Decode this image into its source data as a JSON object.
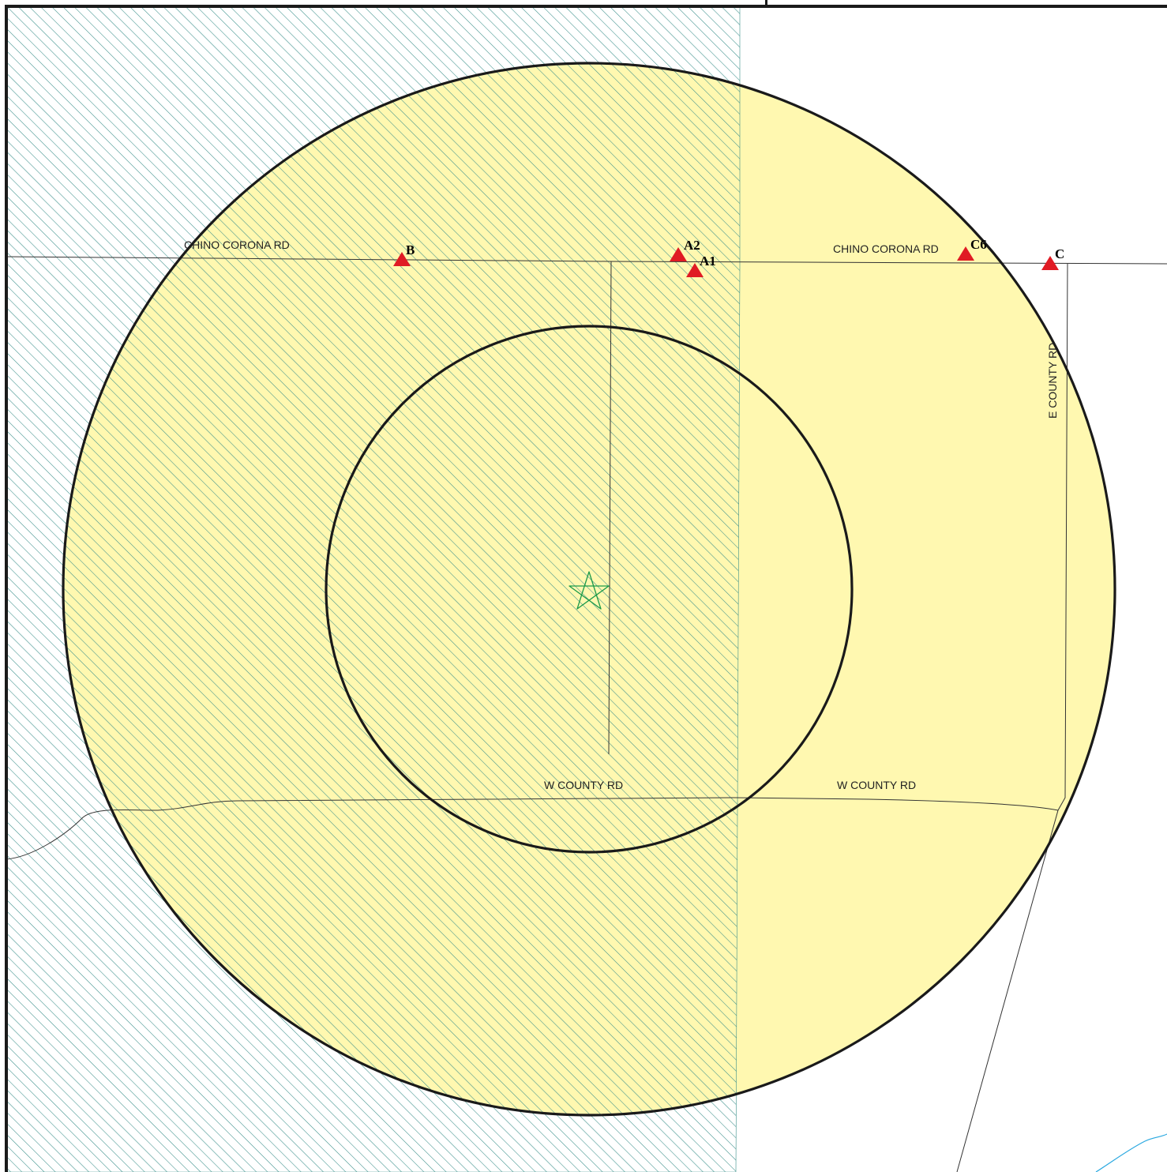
{
  "roads": {
    "chino_corona_west": "CHINO CORONA RD",
    "chino_corona_east": "CHINO CORONA RD",
    "w_county_west": "W COUNTY RD",
    "w_county_east": "W COUNTY RD",
    "e_county": "E COUNTY RD"
  },
  "sites": {
    "b": "B",
    "a2": "A2",
    "a1": "A1",
    "c6": "C6",
    "c": "C"
  },
  "icons": {
    "center": "star-icon",
    "site_marker": "triangle-icon"
  },
  "colors": {
    "buffer_fill": "#fff8b0",
    "hatch": "#3a8f8a",
    "site_marker": "#e01b24",
    "center_marker": "#1a9a4a",
    "water": "#29a8e0"
  }
}
